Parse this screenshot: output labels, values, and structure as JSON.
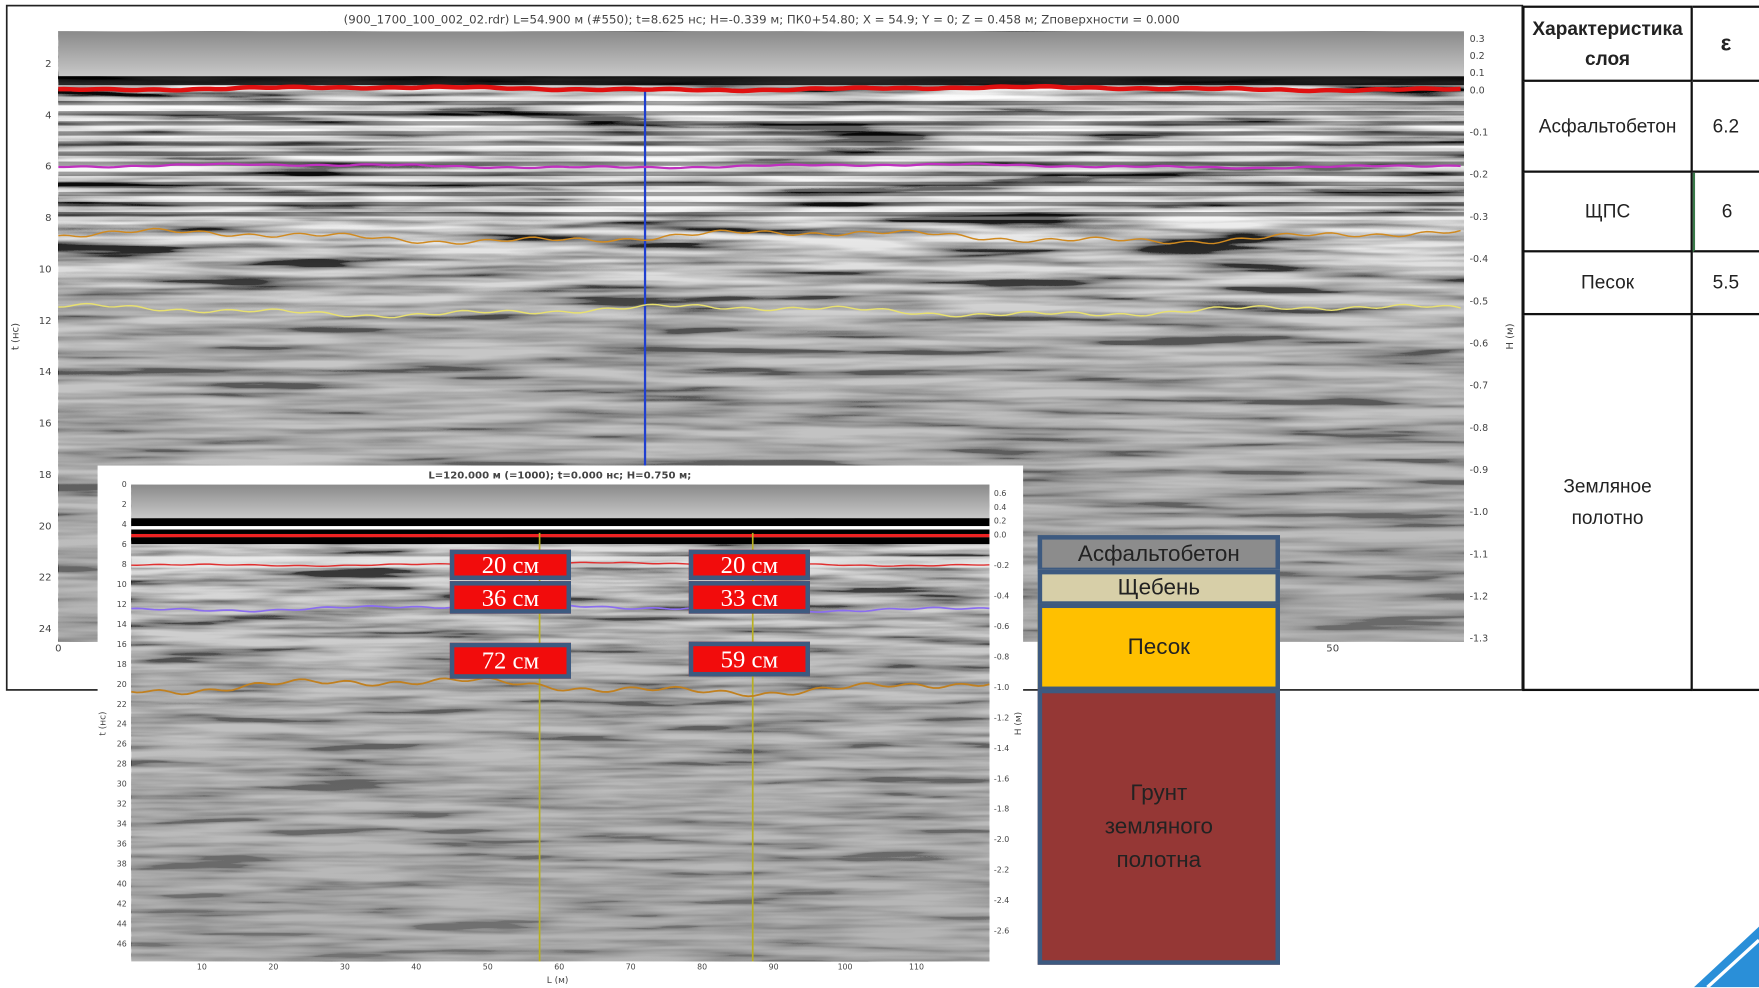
{
  "radargram": {
    "title": "(900_1700_100_002_02.rdr) L=54.900 м (#550); t=8.625 нс; H=-0.339 м; ПК0+54.80; X = 54.9; Y = 0; Z = 0.458 м; Zповерхности = 0.000",
    "y_label": "t (нс)",
    "y2_label": "H (м)",
    "y_ticks": [
      "2",
      "4",
      "6",
      "8",
      "10",
      "12",
      "14",
      "16",
      "18",
      "20",
      "22",
      "24"
    ],
    "y2_ticks": [
      "0.3",
      "0.2",
      "0.1",
      "0.0",
      "-0.1",
      "-0.2",
      "-0.3",
      "-0.4",
      "-0.5",
      "-0.6",
      "-0.7",
      "-0.8",
      "-0.9",
      "-1.0",
      "-1.1",
      "-1.2",
      "-1.3"
    ],
    "x_ticks": [
      "0",
      "50"
    ]
  },
  "table": {
    "header": [
      "Характеристика слоя",
      "ε"
    ],
    "rows": [
      [
        "Асфальтобетон",
        "6.2"
      ],
      [
        "ЩПС",
        "6"
      ],
      [
        "Песок",
        "5.5"
      ],
      [
        "Земляное полотно"
      ]
    ]
  },
  "inset": {
    "title": "L=120.000 м (=1000); t=0.000 нс; H=0.750 м;",
    "y_label": "t (нс)",
    "y2_label": "H (м)",
    "x_label": "L (м)",
    "y_ticks": [
      "0",
      "2",
      "4",
      "6",
      "8",
      "10",
      "12",
      "14",
      "16",
      "18",
      "20",
      "22",
      "24",
      "26",
      "28",
      "30",
      "32",
      "34",
      "36",
      "38",
      "40",
      "42",
      "44",
      "46"
    ],
    "y2_ticks": [
      "0.6",
      "0.4",
      "0.2",
      "0.0",
      "-0.2",
      "-0.4",
      "-0.6",
      "-0.8",
      "-1.0",
      "-1.2",
      "-1.4",
      "-1.6",
      "-1.8",
      "-2.0",
      "-2.2",
      "-2.4",
      "-2.6"
    ],
    "x_ticks": [
      "10",
      "20",
      "30",
      "40",
      "50",
      "60",
      "70",
      "80",
      "90",
      "100",
      "110"
    ],
    "labels": [
      "20 см",
      "36 см",
      "72 см",
      "20 см",
      "33 см",
      "59 см"
    ]
  },
  "legend": [
    "Асфальтобетон",
    "Щебень",
    "Песок",
    "Грунт земляного полотна"
  ]
}
